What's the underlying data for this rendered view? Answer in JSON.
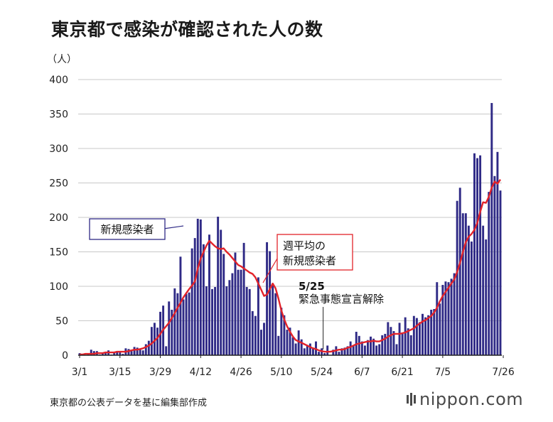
{
  "chart_data": {
    "type": "bar",
    "title": "東京都で感染が確認された人の数",
    "ylabel": "（人）",
    "xlabel": "",
    "ylim": [
      0,
      400
    ],
    "y_ticks": [
      0,
      50,
      100,
      150,
      200,
      250,
      300,
      350,
      400
    ],
    "x_tick_labels": [
      {
        "label": "3/1",
        "day_index": 0
      },
      {
        "label": "3/15",
        "day_index": 14
      },
      {
        "label": "3/29",
        "day_index": 28
      },
      {
        "label": "4/12",
        "day_index": 42
      },
      {
        "label": "4/26",
        "day_index": 56
      },
      {
        "label": "5/10",
        "day_index": 70
      },
      {
        "label": "5/24",
        "day_index": 84
      },
      {
        "label": "6/7",
        "day_index": 98
      },
      {
        "label": "6/21",
        "day_index": 112
      },
      {
        "label": "7/5",
        "day_index": 126
      },
      {
        "label": "7/26",
        "day_index": 147
      }
    ],
    "start_date": "3/1",
    "series": [
      {
        "name": "新規感染者",
        "kind": "bar",
        "color": "#2f2a86",
        "values": [
          3,
          0,
          0,
          1,
          8,
          6,
          6,
          1,
          3,
          3,
          7,
          1,
          3,
          6,
          4,
          2,
          10,
          9,
          6,
          12,
          11,
          8,
          7,
          16,
          21,
          41,
          47,
          40,
          63,
          72,
          13,
          78,
          66,
          97,
          90,
          143,
          81,
          89,
          91,
          155,
          170,
          198,
          197,
          161,
          100,
          175,
          96,
          99,
          201,
          182,
          147,
          100,
          109,
          119,
          149,
          124,
          124,
          163,
          99,
          96,
          64,
          57,
          113,
          37,
          47,
          164,
          151,
          104,
          90,
          28,
          69,
          58,
          37,
          40,
          26,
          17,
          36,
          23,
          10,
          15,
          17,
          11,
          20,
          5,
          10,
          3,
          14,
          0,
          8,
          13,
          5,
          10,
          11,
          13,
          20,
          14,
          34,
          28,
          20,
          14,
          22,
          27,
          24,
          14,
          16,
          29,
          31,
          48,
          41,
          35,
          16,
          47,
          31,
          55,
          39,
          29,
          57,
          54,
          48,
          60,
          55,
          58,
          66,
          67,
          106,
          75,
          102,
          107,
          106,
          111,
          119,
          224,
          243,
          206,
          206,
          188,
          165,
          293,
          286,
          290,
          188,
          168,
          237,
          366,
          260,
          295,
          239
        ]
      },
      {
        "name": "週平均の新規感染者",
        "kind": "line",
        "color": "#e2232a",
        "values": [
          1,
          1,
          2,
          2,
          2,
          2,
          3,
          3,
          3,
          4,
          4,
          4,
          4,
          5,
          5,
          5,
          5,
          6,
          7,
          8,
          8,
          9,
          10,
          12,
          14,
          17,
          21,
          25,
          31,
          37,
          42,
          47,
          54,
          61,
          69,
          76,
          84,
          90,
          96,
          101,
          107,
          126,
          140,
          150,
          159,
          166,
          162,
          158,
          155,
          154,
          155,
          150,
          146,
          141,
          136,
          131,
          129,
          126,
          123,
          120,
          118,
          113,
          104,
          95,
          86,
          88,
          96,
          104,
          97,
          82,
          65,
          52,
          42,
          34,
          27,
          22,
          20,
          18,
          16,
          14,
          12,
          10,
          9,
          7,
          6,
          5,
          5,
          5,
          6,
          7,
          8,
          8,
          9,
          11,
          12,
          14,
          16,
          17,
          18,
          19,
          20,
          20,
          21,
          20,
          20,
          22,
          24,
          27,
          29,
          31,
          31,
          31,
          32,
          33,
          35,
          37,
          39,
          43,
          46,
          49,
          51,
          54,
          57,
          62,
          69,
          78,
          86,
          92,
          98,
          104,
          110,
          121,
          134,
          150,
          164,
          172,
          176,
          182,
          192,
          208,
          222,
          221,
          230,
          243,
          252,
          249,
          255
        ]
      }
    ],
    "annotations": {
      "bar_series_label": "新規感染者",
      "avg_series_label_line1": "週平均の",
      "avg_series_label_line2": "新規感染者",
      "event_date": "5/25",
      "event_label": "緊急事態宣言解除",
      "event_day_index": 85
    }
  },
  "title": "東京都で感染が確認された人の数",
  "source": "東京都の公表データを基に編集部作成",
  "logo": "nippon.com",
  "colors": {
    "bar": "#2f2a86",
    "line": "#e2232a",
    "grid": "#c8c8c8"
  }
}
